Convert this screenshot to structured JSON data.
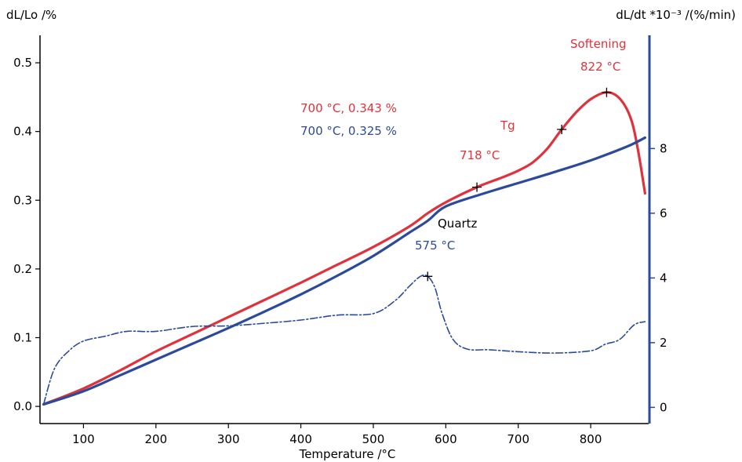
{
  "chart_data": {
    "type": "line",
    "xlabel": "Temperature /°C",
    "ylabel_left": "dL/Lo /%",
    "ylabel_right": "dL/dt *10⁻³ /(%/min)",
    "xlim": [
      40,
      880
    ],
    "ylim_left": [
      -0.025,
      0.54
    ],
    "ylim_right": [
      -0.5,
      11.5
    ],
    "x_ticks": [
      100,
      200,
      300,
      400,
      500,
      600,
      700,
      800
    ],
    "y_ticks_left": [
      0.0,
      0.1,
      0.2,
      0.3,
      0.4,
      0.5
    ],
    "y_ticks_right": [
      0,
      2,
      4,
      6,
      8
    ],
    "grid": false,
    "colors": {
      "red": "#e0323c",
      "blue": "#2b4a9a",
      "right_axis": "#2b4a9a"
    },
    "series": [
      {
        "color": "#e0323c",
        "axis": "left",
        "style": "solid",
        "x": [
          45,
          100,
          150,
          200,
          250,
          300,
          350,
          400,
          450,
          500,
          550,
          575,
          600,
          643,
          680,
          700,
          720,
          740,
          760,
          780,
          800,
          822,
          840,
          855,
          865,
          875
        ],
        "y": [
          0.003,
          0.026,
          0.052,
          0.08,
          0.105,
          0.13,
          0.155,
          0.18,
          0.206,
          0.232,
          0.262,
          0.281,
          0.297,
          0.319,
          0.334,
          0.343,
          0.355,
          0.375,
          0.403,
          0.428,
          0.447,
          0.457,
          0.448,
          0.42,
          0.375,
          0.31
        ]
      },
      {
        "color": "#2b4a9a",
        "axis": "left",
        "style": "solid",
        "x": [
          45,
          100,
          150,
          200,
          250,
          300,
          350,
          400,
          450,
          500,
          550,
          575,
          600,
          650,
          700,
          750,
          800,
          850,
          875
        ],
        "y": [
          0.003,
          0.022,
          0.045,
          0.068,
          0.091,
          0.114,
          0.138,
          0.163,
          0.19,
          0.219,
          0.253,
          0.27,
          0.291,
          0.309,
          0.325,
          0.341,
          0.358,
          0.378,
          0.391
        ]
      },
      {
        "color": "#2b4a9a",
        "axis": "right",
        "style": "dash-dot",
        "x": [
          45,
          60,
          80,
          100,
          130,
          160,
          200,
          250,
          300,
          350,
          400,
          450,
          500,
          530,
          550,
          565,
          575,
          585,
          595,
          610,
          630,
          660,
          700,
          750,
          800,
          820,
          840,
          860,
          875
        ],
        "y": [
          0.1,
          1.2,
          1.75,
          2.05,
          2.2,
          2.35,
          2.35,
          2.5,
          2.52,
          2.6,
          2.7,
          2.85,
          2.9,
          3.3,
          3.75,
          4.05,
          4.05,
          3.7,
          2.9,
          2.1,
          1.8,
          1.78,
          1.72,
          1.68,
          1.75,
          1.95,
          2.1,
          2.55,
          2.65
        ]
      }
    ],
    "markers": [
      {
        "axis": "left",
        "x": 643,
        "y": 0.319
      },
      {
        "axis": "left",
        "x": 760,
        "y": 0.403
      },
      {
        "axis": "left",
        "x": 822,
        "y": 0.457
      },
      {
        "axis": "right",
        "x": 575,
        "y": 4.05
      }
    ],
    "annotations": {
      "red_point": "700 °C, 0.343 %",
      "blue_point": "700 °C, 0.325 %",
      "tg_label": "Tg",
      "tg_temp": "718 °C",
      "softening_label": "Softening",
      "softening_temp": "822 °C",
      "quartz_label": "Quartz",
      "quartz_temp": "575 °C"
    }
  }
}
